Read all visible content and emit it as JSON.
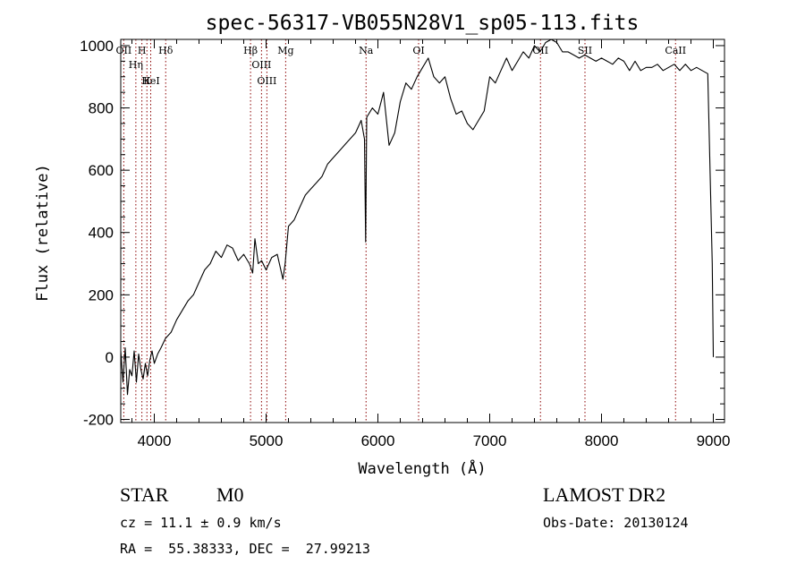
{
  "chart_data": {
    "type": "line",
    "title": "spec-56317-VB055N28V1_sp05-113.fits",
    "xlabel": "Wavelength (Å)",
    "ylabel": "Flux (relative)",
    "xlim": [
      3700,
      9100
    ],
    "ylim": [
      -210,
      1020
    ],
    "xticks": [
      4000,
      5000,
      6000,
      7000,
      8000,
      9000
    ],
    "yticks": [
      -200,
      0,
      200,
      400,
      600,
      800,
      1000
    ],
    "grid": false,
    "series": [
      {
        "x": [
          3700,
          3720,
          3740,
          3760,
          3780,
          3800,
          3820,
          3840,
          3860,
          3880,
          3900,
          3920,
          3940,
          3960,
          3980,
          4000,
          4030,
          4060,
          4100,
          4150,
          4200,
          4250,
          4300,
          4350,
          4400,
          4450,
          4500,
          4550,
          4600,
          4650,
          4700,
          4750,
          4800,
          4850,
          4880,
          4900,
          4930,
          4960,
          5000,
          5050,
          5100,
          5150,
          5170,
          5200,
          5250,
          5300,
          5350,
          5400,
          5450,
          5500,
          5550,
          5600,
          5650,
          5700,
          5750,
          5800,
          5850,
          5880,
          5890,
          5900,
          5950,
          6000,
          6050,
          6100,
          6150,
          6200,
          6250,
          6300,
          6350,
          6400,
          6450,
          6500,
          6550,
          6600,
          6650,
          6700,
          6750,
          6800,
          6850,
          6900,
          6950,
          7000,
          7050,
          7100,
          7150,
          7200,
          7250,
          7300,
          7350,
          7400,
          7450,
          7500,
          7550,
          7600,
          7650,
          7700,
          7750,
          7800,
          7850,
          7900,
          7950,
          8000,
          8050,
          8100,
          8150,
          8200,
          8250,
          8300,
          8350,
          8400,
          8450,
          8500,
          8550,
          8600,
          8650,
          8700,
          8750,
          8800,
          8850,
          8900,
          8950,
          8990,
          9000
        ],
        "y": [
          20,
          -80,
          30,
          -120,
          -40,
          -60,
          20,
          -80,
          10,
          -40,
          -70,
          -20,
          -60,
          -10,
          20,
          -20,
          10,
          30,
          60,
          80,
          120,
          150,
          180,
          200,
          240,
          280,
          300,
          340,
          320,
          360,
          350,
          310,
          330,
          300,
          270,
          380,
          300,
          310,
          280,
          320,
          330,
          250,
          300,
          420,
          440,
          480,
          520,
          540,
          560,
          580,
          620,
          640,
          660,
          680,
          700,
          720,
          760,
          700,
          370,
          770,
          800,
          780,
          850,
          680,
          720,
          820,
          880,
          860,
          900,
          930,
          960,
          900,
          880,
          900,
          830,
          780,
          790,
          750,
          730,
          760,
          790,
          900,
          880,
          920,
          960,
          920,
          950,
          980,
          960,
          1000,
          980,
          1010,
          1020,
          1010,
          980,
          980,
          970,
          960,
          970,
          960,
          950,
          960,
          950,
          940,
          960,
          950,
          920,
          950,
          920,
          930,
          930,
          940,
          920,
          930,
          940,
          920,
          940,
          920,
          930,
          920,
          910,
          300,
          0
        ]
      }
    ],
    "lines": [
      {
        "label": "OII",
        "x": 3727
      },
      {
        "label": "Hη",
        "x": 3835
      },
      {
        "label": "H",
        "x": 3889
      },
      {
        "label": "K",
        "x": 3934
      },
      {
        "label": "HeI",
        "x": 3968
      },
      {
        "label": "Hδ",
        "x": 4102
      },
      {
        "label": "Hβ",
        "x": 4861
      },
      {
        "label": "OIII",
        "x": 4959
      },
      {
        "label": "OIII",
        "x": 5007
      },
      {
        "label": "Mg",
        "x": 5175
      },
      {
        "label": "Na",
        "x": 5894
      },
      {
        "label": "OI",
        "x": 6364
      },
      {
        "label": "OII",
        "x": 7454
      },
      {
        "label": "SII",
        "x": 7852
      },
      {
        "label": "CaII",
        "x": 8662
      }
    ]
  },
  "info": {
    "object_class": "STAR",
    "subclass": "M0",
    "survey": "LAMOST DR2",
    "cz_text": "cz = 11.1 ± 0.9 km/s",
    "obs_date_text": "Obs-Date: 20130124",
    "radec_text": "RA =  55.38333, DEC =  27.99213"
  },
  "colors": {
    "spectrum": "#000000",
    "line_markers": "#8b0000",
    "axes": "#000000",
    "background": "#ffffff"
  }
}
